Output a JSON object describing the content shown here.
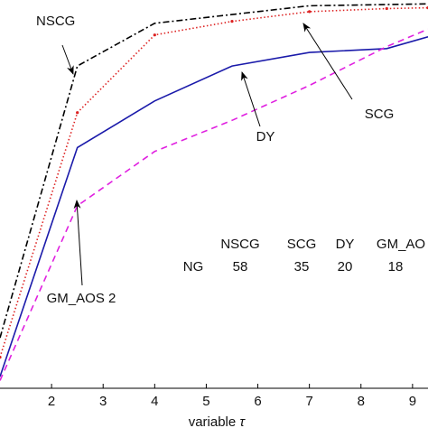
{
  "chart_data": {
    "type": "line",
    "xlabel": "variable τ",
    "xlabel_prefix": "variable",
    "xlabel_symbol": "τ",
    "xlim": [
      1,
      9.3
    ],
    "ylim": [
      0.0,
      1.0
    ],
    "xticks": [
      2,
      3,
      4,
      5,
      6,
      7,
      8,
      9
    ],
    "grid": false,
    "series": [
      {
        "name": "NSCG",
        "color": "#000000",
        "dash": "dashdot",
        "x": [
          1,
          2.5,
          4,
          7,
          9.3
        ],
        "y": [
          0.13,
          0.83,
          0.94,
          0.985,
          0.99
        ]
      },
      {
        "name": "SCG",
        "color": "#dd2222",
        "dash": "dotted",
        "x": [
          1,
          2.5,
          4,
          5.5,
          7,
          8.5,
          9.3
        ],
        "y": [
          0.08,
          0.71,
          0.91,
          0.945,
          0.97,
          0.978,
          0.98
        ]
      },
      {
        "name": "DY",
        "color": "#1a1aaa",
        "dash": "solid",
        "x": [
          1,
          2.5,
          4,
          5.5,
          7,
          8.5,
          9.3
        ],
        "y": [
          0.03,
          0.62,
          0.74,
          0.83,
          0.865,
          0.875,
          0.905
        ]
      },
      {
        "name": "GM_AOS 2",
        "color": "#e020e0",
        "dash": "dashed",
        "x": [
          1,
          2.5,
          4,
          5.5,
          7,
          8.5,
          9.3
        ],
        "y": [
          0.02,
          0.47,
          0.61,
          0.69,
          0.78,
          0.88,
          0.925
        ]
      }
    ],
    "annotations": [
      {
        "text": "NSCG",
        "series": "NSCG"
      },
      {
        "text": "SCG",
        "series": "SCG"
      },
      {
        "text": "DY",
        "series": "DY"
      },
      {
        "text": "GM_AOS 2",
        "series": "GM_AOS 2"
      }
    ],
    "table": {
      "headers": [
        "NSCG",
        "SCG",
        "DY",
        "GM_AO"
      ],
      "row_label": "NG",
      "values": [
        "58",
        "35",
        "20",
        "18"
      ]
    }
  }
}
